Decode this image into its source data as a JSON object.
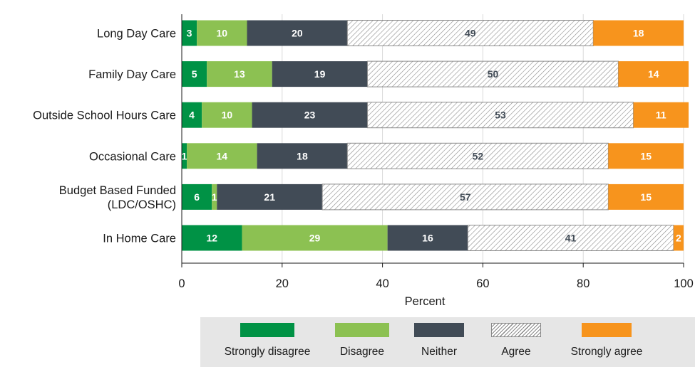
{
  "chart_data": {
    "type": "bar",
    "orientation": "horizontal",
    "stacked": true,
    "categories": [
      "Long Day Care",
      "Family Day Care",
      "Outside School Hours Care",
      "Occasional Care",
      "Budget Based Funded (LDC/OSHC)",
      "In Home Care"
    ],
    "category_lines": [
      [
        "Long Day Care"
      ],
      [
        "Family Day Care"
      ],
      [
        "Outside School Hours Care"
      ],
      [
        "Occasional Care"
      ],
      [
        "Budget Based Funded",
        "(LDC/OSHC)"
      ],
      [
        "In Home Care"
      ]
    ],
    "series": [
      {
        "name": "Strongly disagree",
        "color": "#009245",
        "pattern": "solid",
        "values": [
          3,
          5,
          4,
          1,
          6,
          12
        ]
      },
      {
        "name": "Disagree",
        "color": "#8cc152",
        "pattern": "solid",
        "values": [
          10,
          13,
          10,
          14,
          1,
          29
        ]
      },
      {
        "name": "Neither",
        "color": "#414b56",
        "pattern": "solid",
        "values": [
          20,
          19,
          23,
          18,
          21,
          16
        ]
      },
      {
        "name": "Agree",
        "color": "#bbbbbb",
        "pattern": "diagonal-hatch",
        "values": [
          49,
          50,
          53,
          52,
          57,
          41
        ]
      },
      {
        "name": "Strongly agree",
        "color": "#f7941d",
        "pattern": "solid",
        "values": [
          18,
          14,
          11,
          15,
          15,
          2
        ]
      }
    ],
    "label_colors": [
      "#ffffff",
      "#ffffff",
      "#ffffff",
      "#414b56",
      "#ffffff"
    ],
    "xlabel": "Percent",
    "ylabel": "",
    "title": "",
    "xlim": [
      0,
      100
    ],
    "xticks": [
      0,
      20,
      40,
      60,
      80,
      100
    ],
    "grid": "vertical",
    "legend_position": "bottom"
  }
}
